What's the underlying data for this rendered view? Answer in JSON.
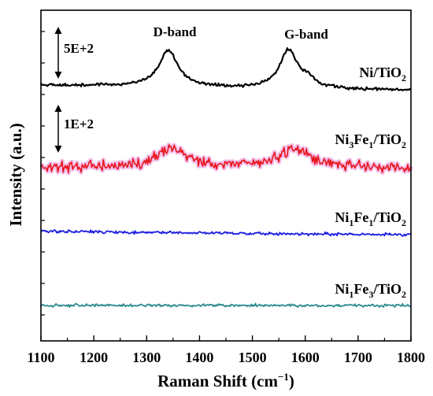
{
  "chart_data": {
    "type": "line",
    "xlabel": "Raman Shift (cm",
    "xlabel_sup": "−1",
    "xlabel_close": ")",
    "ylabel": "Intensity (a.u.)",
    "xlim": [
      1100,
      1800
    ],
    "x_ticks": [
      "1100",
      "1200",
      "1300",
      "1400",
      "1500",
      "1600",
      "1700",
      "1800"
    ],
    "y_ticks_labeled": false,
    "grid": false,
    "annotations": {
      "d_band": "D-band",
      "g_band": "G-band",
      "scale_bar_1": "5E+2",
      "scale_bar_2": "1E+2"
    },
    "series": [
      {
        "key": "s1",
        "label_parts": [
          [
            "Ni",
            false
          ],
          [
            "/TiO",
            false
          ],
          [
            "2",
            true
          ]
        ],
        "color": "#000000",
        "baseline": 108,
        "slope": 0.01,
        "noise": 1.0,
        "peaks": [
          {
            "center": 1341,
            "width": 22,
            "height": 46
          },
          {
            "center": 1568,
            "width": 20,
            "height": 48
          },
          {
            "center": 1605,
            "width": 18,
            "height": 10
          }
        ]
      },
      {
        "key": "s2",
        "label_parts": [
          [
            "Ni",
            false
          ],
          [
            "3",
            true
          ],
          [
            "Fe",
            false
          ],
          [
            "1",
            true
          ],
          [
            "/TiO",
            false
          ],
          [
            "2",
            true
          ]
        ],
        "color": "#e8141b",
        "halo": "#f2b8e8",
        "baseline": 212,
        "slope": 0.002,
        "noise": 3.5,
        "peaks": [
          {
            "center": 1350,
            "width": 30,
            "height": 24
          },
          {
            "center": 1580,
            "width": 38,
            "height": 24
          }
        ]
      },
      {
        "key": "s3",
        "label_parts": [
          [
            "Ni",
            false
          ],
          [
            "1",
            true
          ],
          [
            "Fe",
            false
          ],
          [
            "1",
            true
          ],
          [
            "/TiO",
            false
          ],
          [
            "2",
            true
          ]
        ],
        "color": "#1c1ce0",
        "baseline": 294,
        "slope": 0.006,
        "noise": 0.9,
        "peaks": []
      },
      {
        "key": "s4",
        "label_parts": [
          [
            "Ni",
            false
          ],
          [
            "1",
            true
          ],
          [
            "Fe",
            false
          ],
          [
            "3",
            true
          ],
          [
            "/TiO",
            false
          ],
          [
            "2",
            true
          ]
        ],
        "color": "#2a8a8e",
        "baseline": 388,
        "slope": 0.0,
        "noise": 0.9,
        "peaks": []
      }
    ]
  }
}
